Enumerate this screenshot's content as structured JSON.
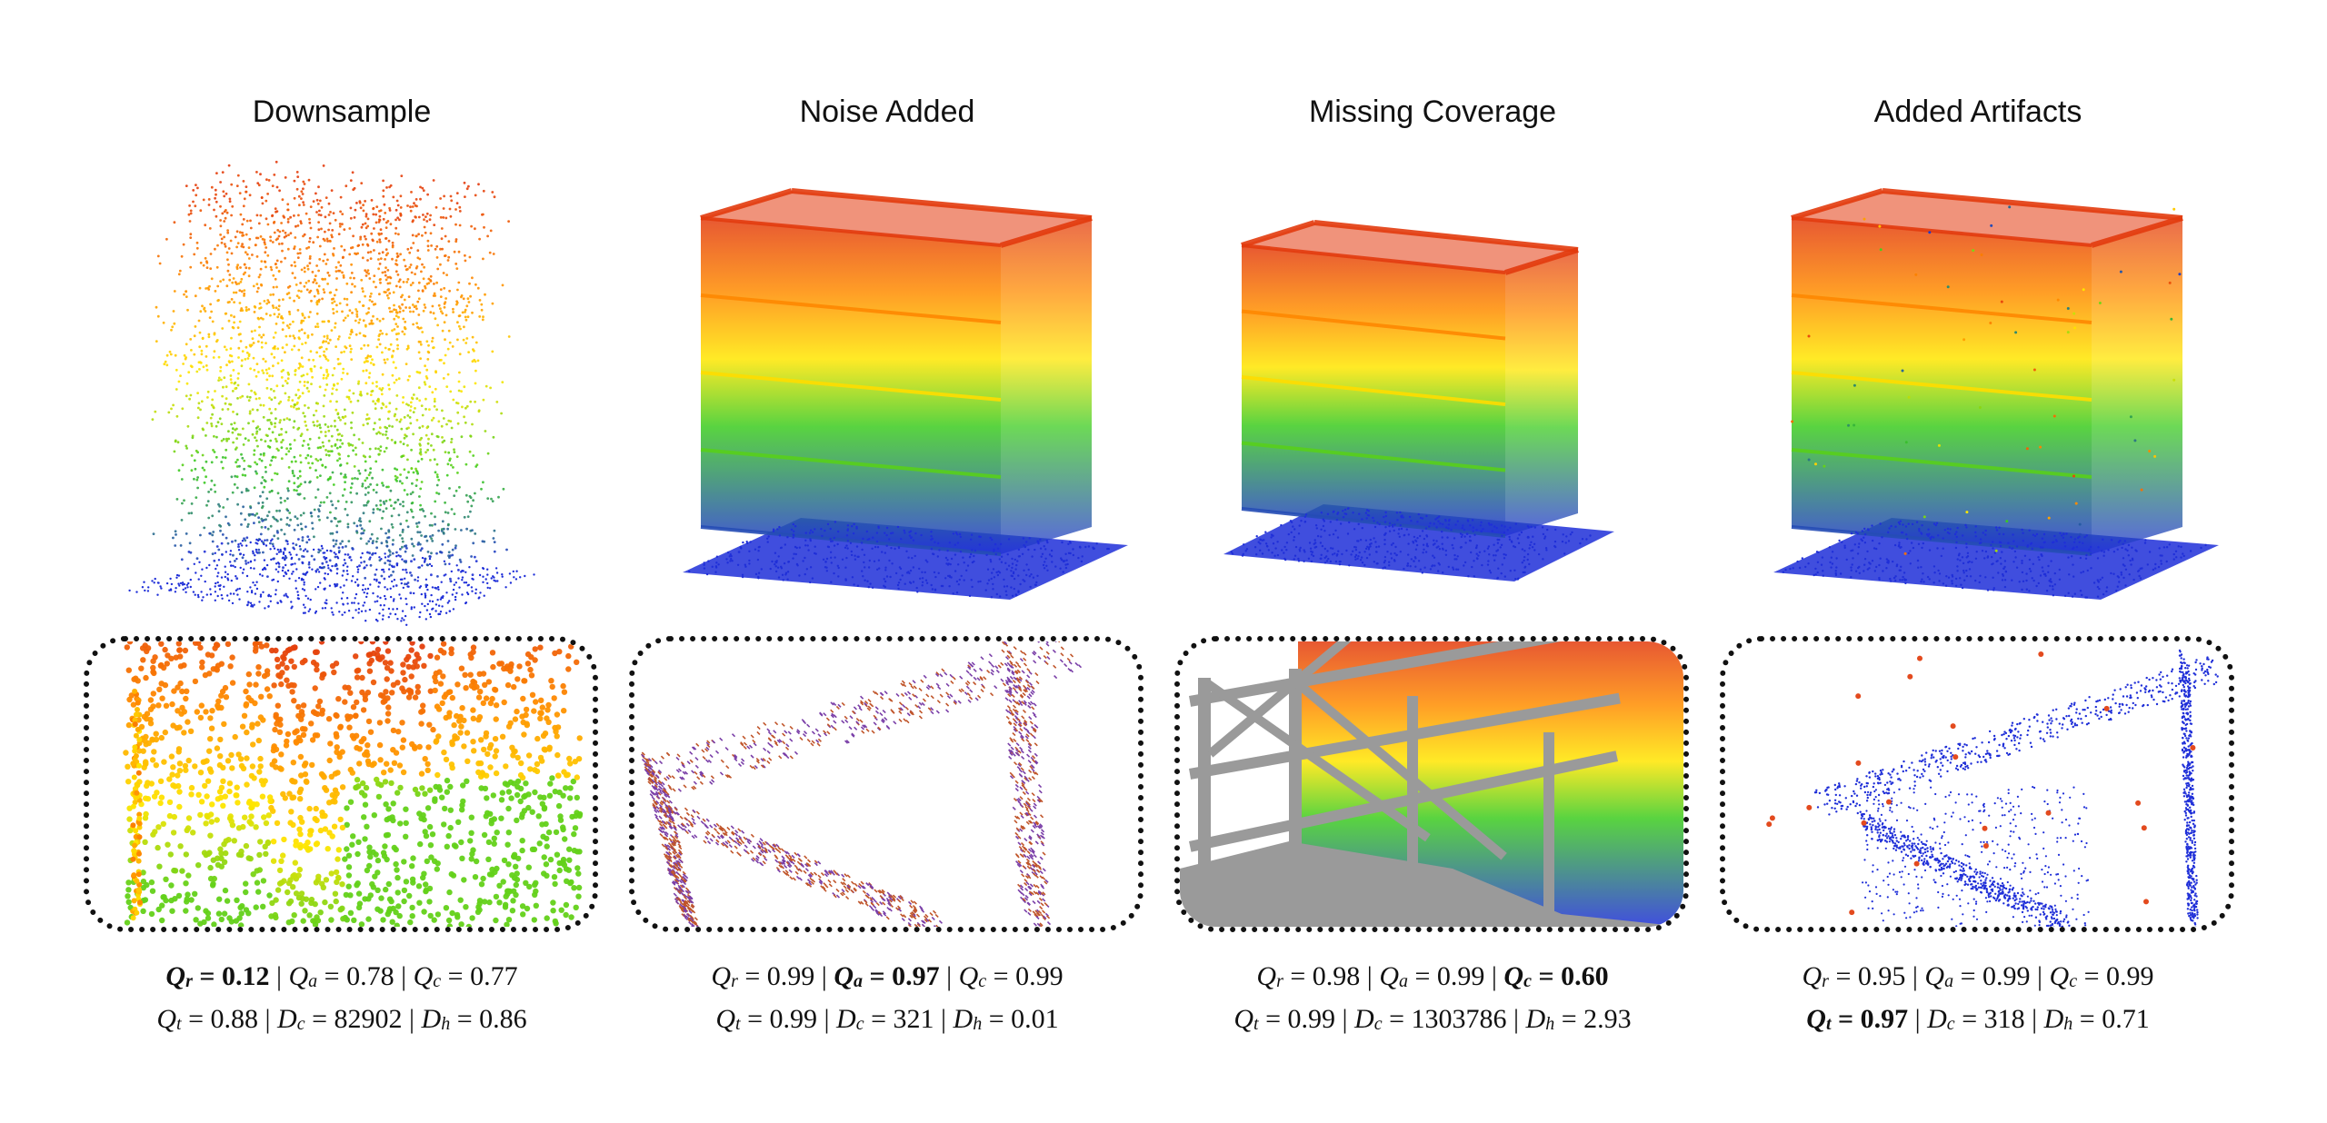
{
  "panels": [
    {
      "title": "Downsample",
      "metrics": {
        "Qr": "0.12",
        "Qa": "0.78",
        "Qc": "0.77",
        "Qt": "0.88",
        "Dc": "82902",
        "Dh": "0.86",
        "bold": "Qr"
      }
    },
    {
      "title": "Noise Added",
      "metrics": {
        "Qr": "0.99",
        "Qa": "0.97",
        "Qc": "0.99",
        "Qt": "0.99",
        "Dc": "321",
        "Dh": "0.01",
        "bold": "Qa"
      }
    },
    {
      "title": "Missing Coverage",
      "metrics": {
        "Qr": "0.98",
        "Qa": "0.99",
        "Qc": "0.60",
        "Qt": "0.99",
        "Dc": "1303786",
        "Dh": "2.93",
        "bold": "Qc"
      }
    },
    {
      "title": "Added Artifacts",
      "metrics": {
        "Qr": "0.95",
        "Qa": "0.99",
        "Qc": "0.99",
        "Qt": "0.97",
        "Dc": "318",
        "Dh": "0.71",
        "bold": "Qt"
      }
    }
  ],
  "symbols": {
    "Q": "Q",
    "D": "D",
    "r": "r",
    "a": "a",
    "c": "c",
    "t": "t",
    "h": "h",
    "eq": " = ",
    "sep": " | "
  },
  "colors": {
    "top": "#e33b0e",
    "upper": "#ff8c00",
    "mid": "#ffe600",
    "lower": "#3ccc1f",
    "base": "#1f2fd8",
    "gray": "#9a9a9a"
  }
}
